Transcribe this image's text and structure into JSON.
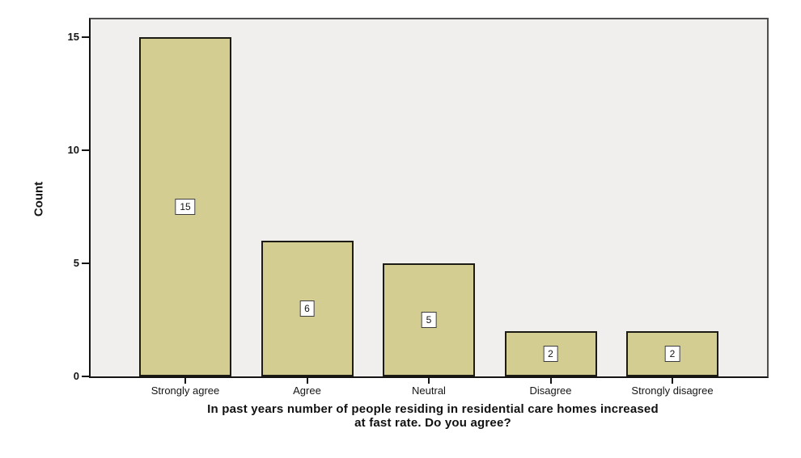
{
  "chart_data": {
    "type": "bar",
    "title": "",
    "categories": [
      "Strongly agree",
      "Agree",
      "Neutral",
      "Disagree",
      "Strongly disagree"
    ],
    "values": [
      15,
      6,
      5,
      2,
      2
    ],
    "ylabel": "Count",
    "xlabel": "In past years number of people residing in residential care homes increased at fast rate. Do you agree?",
    "xlabel_lines": [
      "In past years number of people residing in residential care homes increased",
      "at fast rate. Do you agree?"
    ],
    "yticks": [
      0,
      5,
      10,
      15
    ],
    "ylim": [
      0,
      15.9
    ],
    "grid": false,
    "legend": "none",
    "value_labels_boxed": true,
    "colors": {
      "bar_fill": "#d3cd92",
      "bar_border": "#1c1c14",
      "plot_bg": "#f0efed",
      "frame": "#4f4f4f",
      "axis": "#141414",
      "text": "#151515",
      "value_box_bg": "#ffffff",
      "value_box_border": "#3c3c3c",
      "page_bg": "#ffffff"
    }
  }
}
